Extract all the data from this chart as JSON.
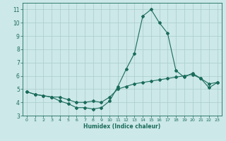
{
  "title": "",
  "xlabel": "Humidex (Indice chaleur)",
  "ylabel": "",
  "xlim": [
    -0.5,
    23.5
  ],
  "ylim": [
    3,
    11.5
  ],
  "yticks": [
    3,
    4,
    5,
    6,
    7,
    8,
    9,
    10,
    11
  ],
  "xticks": [
    0,
    1,
    2,
    3,
    4,
    5,
    6,
    7,
    8,
    9,
    10,
    11,
    12,
    13,
    14,
    15,
    16,
    17,
    18,
    19,
    20,
    21,
    22,
    23
  ],
  "background_color": "#cce8e8",
  "grid_color": "#aacccc",
  "line_color": "#1a6b5a",
  "line1_x": [
    0,
    1,
    2,
    3,
    4,
    5,
    6,
    7,
    8,
    9,
    10,
    11,
    12,
    13,
    14,
    15,
    16,
    17,
    18,
    19,
    20,
    21,
    22,
    23
  ],
  "line1_y": [
    4.8,
    4.6,
    4.5,
    4.4,
    4.1,
    3.9,
    3.6,
    3.6,
    3.5,
    3.6,
    4.1,
    5.2,
    6.5,
    7.7,
    10.5,
    11.0,
    10.0,
    9.2,
    6.4,
    5.9,
    6.2,
    5.8,
    5.1,
    5.5
  ],
  "line2_x": [
    0,
    1,
    2,
    3,
    4,
    5,
    6,
    7,
    8,
    9,
    10,
    11,
    12,
    13,
    14,
    15,
    16,
    17,
    18,
    19,
    20,
    21,
    22,
    23
  ],
  "line2_y": [
    4.8,
    4.6,
    4.5,
    4.4,
    4.4,
    4.2,
    4.0,
    4.0,
    4.1,
    4.0,
    4.4,
    5.0,
    5.2,
    5.4,
    5.5,
    5.6,
    5.7,
    5.8,
    5.9,
    6.0,
    6.1,
    5.8,
    5.4,
    5.5
  ],
  "marker": "D",
  "marker_size": 2.0,
  "line_width": 0.8
}
